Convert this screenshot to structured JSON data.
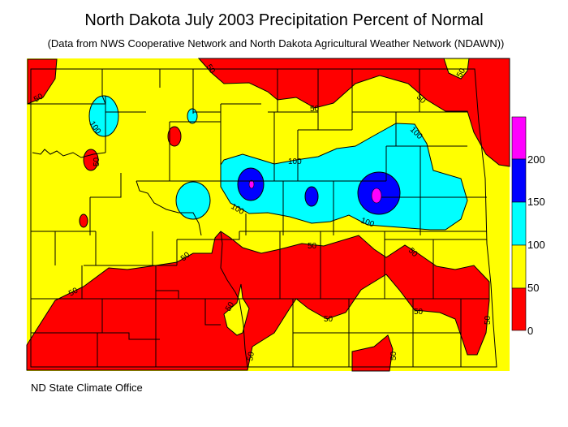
{
  "title": "North Dakota July 2003 Precipitation Percent of Normal",
  "subtitle": "(Data from NWS Cooperative Network and North Dakota Agricultural Weather Network (NDAWN))",
  "footer": "ND State Climate Office",
  "legend": {
    "ticks": [
      "0",
      "50",
      "100",
      "150",
      "200"
    ],
    "bins": [
      {
        "range": "0-50",
        "color": "#ff0000"
      },
      {
        "range": "50-100",
        "color": "#ffff00"
      },
      {
        "range": "100-150",
        "color": "#00ffff"
      },
      {
        "range": "150-200",
        "color": "#0000ff"
      },
      {
        "range": ">200",
        "color": "#ff00ff"
      }
    ]
  },
  "contour_labels": [
    "50",
    "100",
    "50",
    "50",
    "50",
    "50",
    "50",
    "100",
    "100",
    "100",
    "100",
    "50",
    "50",
    "50",
    "50",
    "50",
    "50",
    "50",
    "50",
    "50",
    "50"
  ]
}
